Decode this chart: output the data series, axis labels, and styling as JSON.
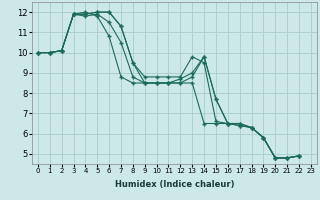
{
  "xlabel": "Humidex (Indice chaleur)",
  "background_color": "#cce8e8",
  "grid_color": "#aacccc",
  "line_color": "#1a6b5a",
  "xlim": [
    -0.5,
    23.5
  ],
  "ylim": [
    4.5,
    12.5
  ],
  "xticks": [
    0,
    1,
    2,
    3,
    4,
    5,
    6,
    7,
    8,
    9,
    10,
    11,
    12,
    13,
    14,
    15,
    16,
    17,
    18,
    19,
    20,
    21,
    22,
    23
  ],
  "yticks": [
    5,
    6,
    7,
    8,
    9,
    10,
    11,
    12
  ],
  "series": [
    [
      10.0,
      10.0,
      10.1,
      11.9,
      11.8,
      11.9,
      11.5,
      10.5,
      8.8,
      8.5,
      8.5,
      8.5,
      8.5,
      8.8,
      9.8,
      7.7,
      6.5,
      6.4,
      6.3,
      5.8,
      4.8,
      4.8,
      4.9
    ],
    [
      10.0,
      10.0,
      10.1,
      11.9,
      11.9,
      12.0,
      12.0,
      11.3,
      9.5,
      8.8,
      8.8,
      8.8,
      8.8,
      9.8,
      9.5,
      6.6,
      6.5,
      6.4,
      6.3,
      5.8,
      4.8,
      4.8,
      4.9
    ],
    [
      10.0,
      10.0,
      10.1,
      11.9,
      11.9,
      12.0,
      12.0,
      11.3,
      9.5,
      8.5,
      8.5,
      8.5,
      8.7,
      9.0,
      9.8,
      7.7,
      6.5,
      6.5,
      6.3,
      5.8,
      4.8,
      4.8,
      4.9
    ],
    [
      10.0,
      10.0,
      10.1,
      11.9,
      12.0,
      11.8,
      10.8,
      8.8,
      8.5,
      8.5,
      8.5,
      8.5,
      8.5,
      8.5,
      6.5,
      6.5,
      6.5,
      6.5,
      6.3,
      5.8,
      4.8,
      4.8,
      4.9
    ]
  ]
}
